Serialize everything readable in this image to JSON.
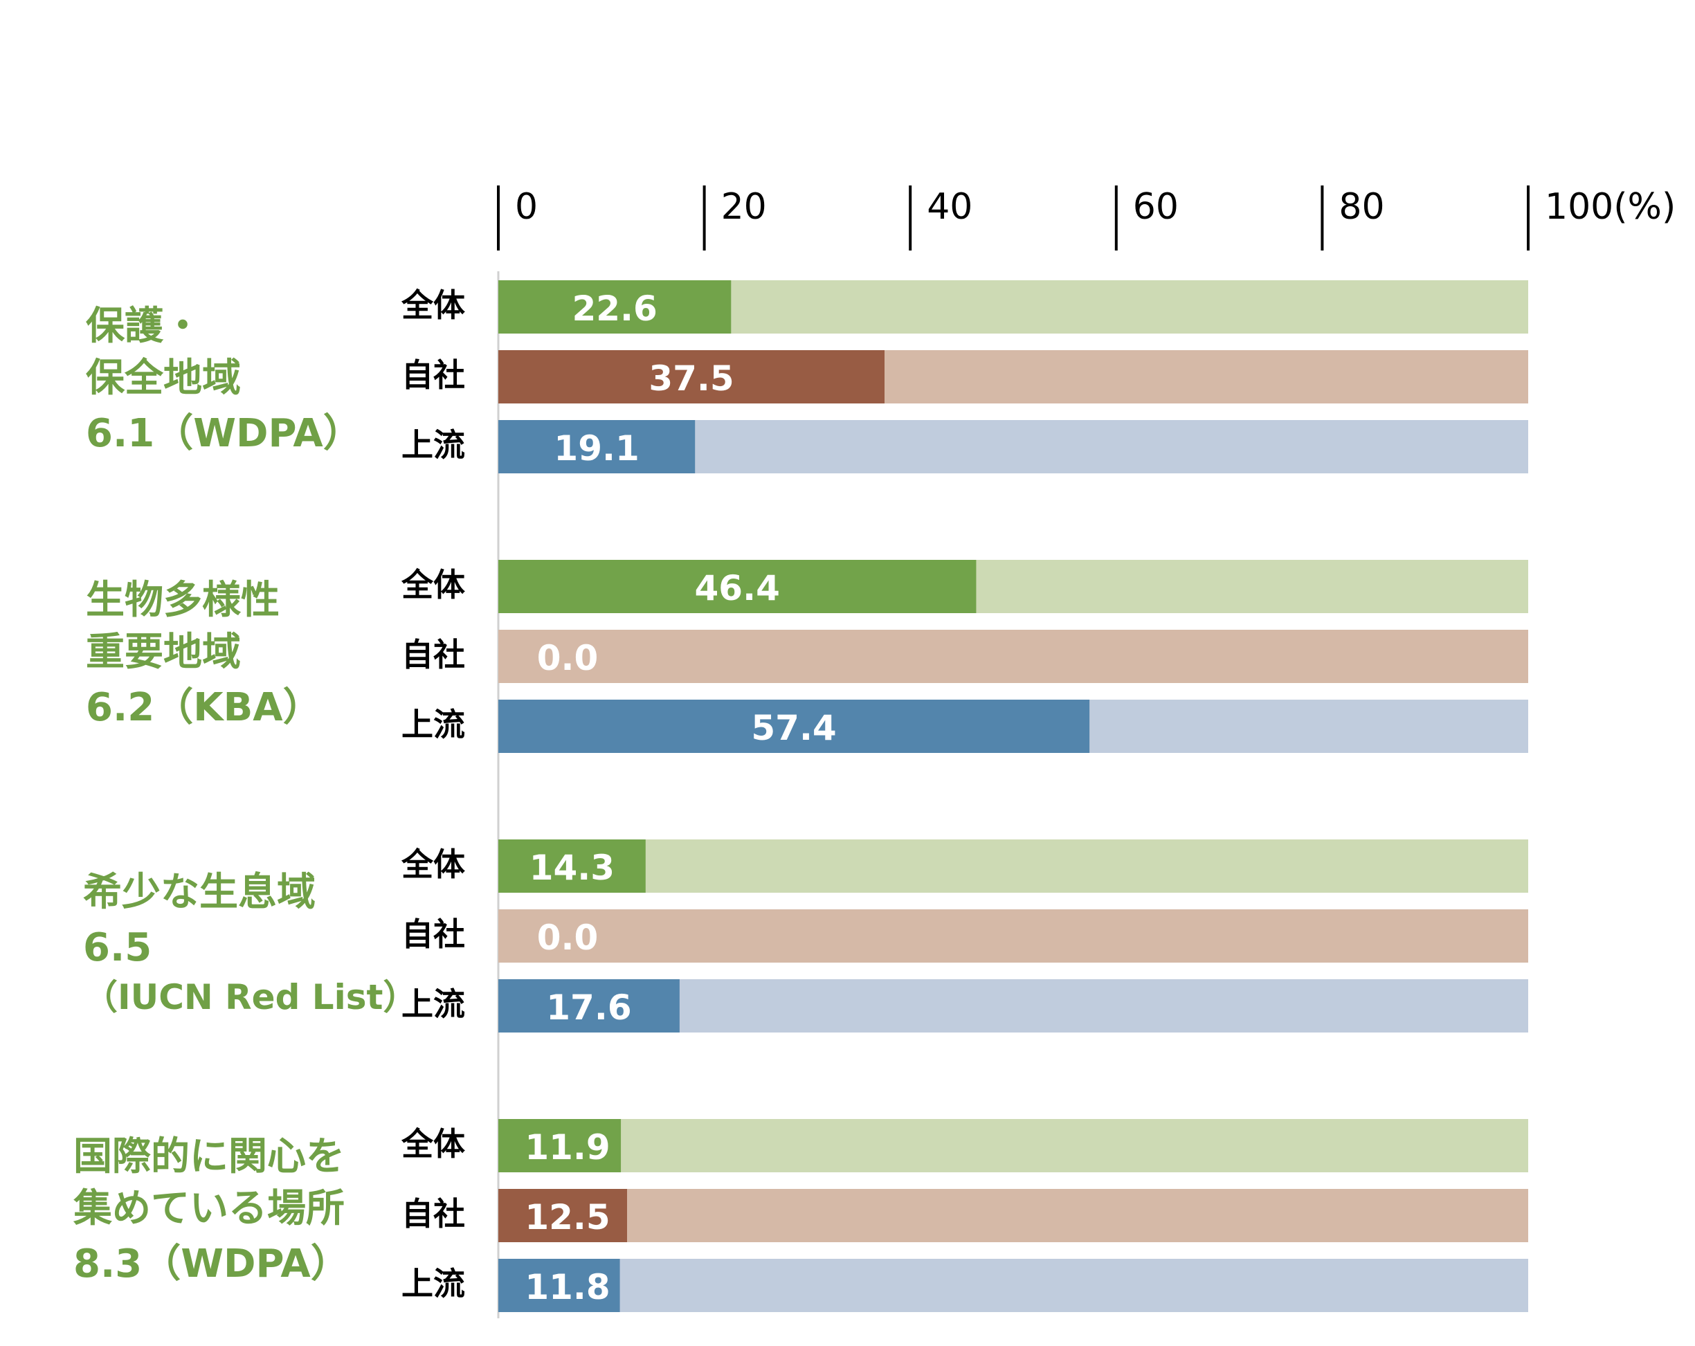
{
  "chart_data": {
    "type": "bar",
    "orientation": "horizontal",
    "stacked_remainder_to": 100,
    "xlim": [
      0,
      100
    ],
    "x_ticks": [
      "0",
      "20",
      "40",
      "60",
      "80",
      "100(%)"
    ],
    "x_tick_values": [
      0,
      20,
      40,
      60,
      80,
      100
    ],
    "series_names": [
      "全体",
      "自社",
      "上流"
    ],
    "colors": {
      "全体": {
        "fill": "#72a34a",
        "remainder": "#cddab4"
      },
      "自社": {
        "fill": "#985c44",
        "remainder": "#d5b9a7"
      },
      "上流": {
        "fill": "#5385ac",
        "remainder": "#c0ccdd"
      }
    },
    "groups": [
      {
        "label_lines": [
          "保護・",
          "保全地域",
          "6.1（WDPA）"
        ],
        "rows": [
          {
            "name": "全体",
            "value": 22.6,
            "label": "22.6"
          },
          {
            "name": "自社",
            "value": 37.5,
            "label": "37.5"
          },
          {
            "name": "上流",
            "value": 19.1,
            "label": "19.1"
          }
        ]
      },
      {
        "label_lines": [
          "生物多様性",
          "重要地域",
          "6.2（KBA）"
        ],
        "rows": [
          {
            "name": "全体",
            "value": 46.4,
            "label": "46.4"
          },
          {
            "name": "自社",
            "value": 0.0,
            "label": "0.0"
          },
          {
            "name": "上流",
            "value": 57.4,
            "label": "57.4"
          }
        ]
      },
      {
        "label_lines": [
          "希少な生息域",
          "6.5",
          "（IUCN Red List）"
        ],
        "rows": [
          {
            "name": "全体",
            "value": 14.3,
            "label": "14.3"
          },
          {
            "name": "自社",
            "value": 0.0,
            "label": "0.0"
          },
          {
            "name": "上流",
            "value": 17.6,
            "label": "17.6"
          }
        ]
      },
      {
        "label_lines": [
          "国際的に関心を",
          "集めている場所",
          "8.3（WDPA）"
        ],
        "rows": [
          {
            "name": "全体",
            "value": 11.9,
            "label": "11.9"
          },
          {
            "name": "自社",
            "value": 12.5,
            "label": "12.5"
          },
          {
            "name": "上流",
            "value": 11.8,
            "label": "11.8"
          }
        ]
      }
    ]
  }
}
